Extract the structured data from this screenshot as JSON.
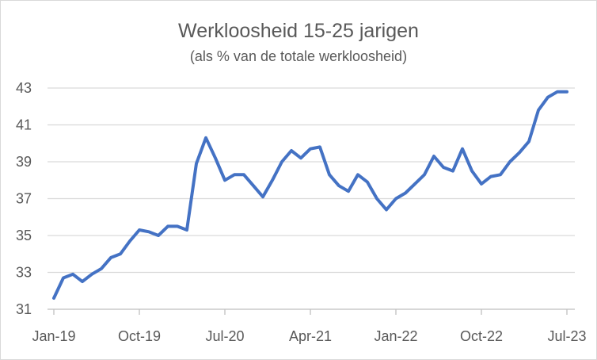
{
  "chart_data": {
    "type": "line",
    "title": "Werkloosheid 15-25 jarigen",
    "subtitle": "(als % van de totale werkloosheid)",
    "xlabel": "",
    "ylabel": "",
    "ylim": [
      31,
      43
    ],
    "y_ticks": [
      "31",
      "33",
      "35",
      "37",
      "39",
      "41",
      "43"
    ],
    "x_ticks": [
      {
        "index": 0,
        "label": "Jan-19"
      },
      {
        "index": 9,
        "label": "Oct-19"
      },
      {
        "index": 18,
        "label": "Jul-20"
      },
      {
        "index": 27,
        "label": "Apr-21"
      },
      {
        "index": 36,
        "label": "Jan-22"
      },
      {
        "index": 45,
        "label": "Oct-22"
      },
      {
        "index": 54,
        "label": "Jul-23"
      }
    ],
    "grid": "horizontal",
    "legend": "none",
    "x": [
      "Jan-19",
      "Feb-19",
      "Mar-19",
      "Apr-19",
      "May-19",
      "Jun-19",
      "Jul-19",
      "Aug-19",
      "Sep-19",
      "Oct-19",
      "Nov-19",
      "Dec-19",
      "Jan-20",
      "Feb-20",
      "Mar-20",
      "Apr-20",
      "May-20",
      "Jun-20",
      "Jul-20",
      "Aug-20",
      "Sep-20",
      "Oct-20",
      "Nov-20",
      "Dec-20",
      "Jan-21",
      "Feb-21",
      "Mar-21",
      "Apr-21",
      "May-21",
      "Jun-21",
      "Jul-21",
      "Aug-21",
      "Sep-21",
      "Oct-21",
      "Nov-21",
      "Dec-21",
      "Jan-22",
      "Feb-22",
      "Mar-22",
      "Apr-22",
      "May-22",
      "Jun-22",
      "Jul-22",
      "Aug-22",
      "Sep-22",
      "Oct-22",
      "Nov-22",
      "Dec-22",
      "Jan-23",
      "Feb-23",
      "Mar-23",
      "Apr-23",
      "May-23",
      "Jun-23",
      "Jul-23"
    ],
    "series": [
      {
        "color": "#4472c4",
        "values": [
          31.6,
          32.7,
          32.9,
          32.5,
          32.9,
          33.2,
          33.8,
          34.0,
          34.7,
          35.3,
          35.2,
          35.0,
          35.5,
          35.5,
          35.3,
          38.9,
          40.3,
          39.2,
          38.0,
          38.3,
          38.3,
          37.7,
          37.1,
          38.0,
          39.0,
          39.6,
          39.2,
          39.7,
          39.8,
          38.3,
          37.7,
          37.4,
          38.3,
          37.9,
          37.0,
          36.4,
          37.0,
          37.3,
          37.8,
          38.3,
          39.3,
          38.7,
          38.5,
          39.7,
          38.5,
          37.8,
          38.2,
          38.3,
          39.0,
          39.5,
          40.1,
          41.8,
          42.5,
          42.8,
          42.8
        ]
      }
    ]
  }
}
